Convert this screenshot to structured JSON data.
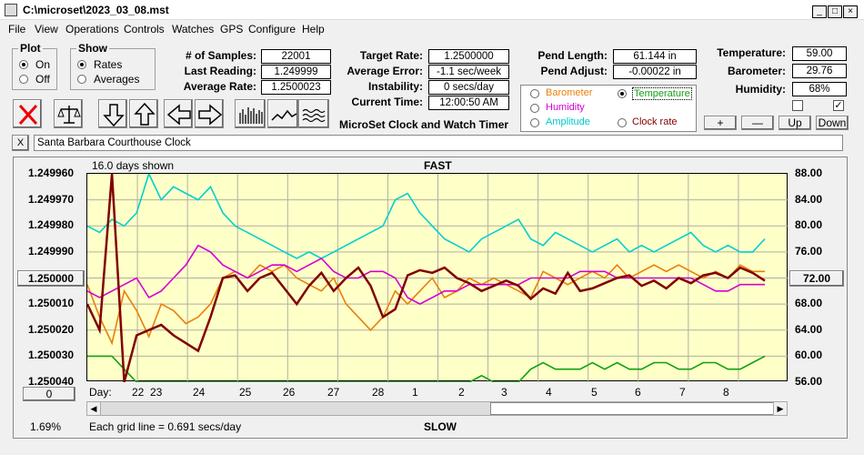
{
  "window": {
    "title": "C:\\microset\\2023_03_08.mst"
  },
  "menu": [
    "File",
    "View",
    "Operations",
    "Controls",
    "Watches",
    "GPS",
    "Configure",
    "Help"
  ],
  "plot_group": {
    "title": "Plot",
    "on": "On",
    "off": "Off"
  },
  "show_group": {
    "title": "Show",
    "rates": "Rates",
    "averages": "Averages"
  },
  "fields": {
    "samples_label": "# of Samples:",
    "samples": "22001",
    "last_label": "Last Reading:",
    "last": "1.249999",
    "avg_label": "Average Rate:",
    "avg": "1.2500023",
    "target_label": "Target Rate:",
    "target": "1.2500000",
    "avgerr_label": "Average Error:",
    "avgerr": "-1.1 sec/week",
    "instab_label": "Instability:",
    "instab": "0 secs/day",
    "time_label": "Current Time:",
    "time": "12:00:50 AM",
    "pendlen_label": "Pend Length:",
    "pendlen": "61.144 in",
    "pendadj_label": "Pend Adjust:",
    "pendadj": "-0.00022 in",
    "temp_label": "Temperature:",
    "temp": "59.00",
    "baro_label": "Barometer:",
    "baro": "29.76",
    "hum_label": "Humidity:",
    "hum": "68%"
  },
  "app_caption": "MicroSet Clock and Watch Timer",
  "sensor_radios": {
    "barometer": "Barometer",
    "temperature": "Temperature",
    "humidity": "Humidity",
    "amplitude": "Amplitude",
    "clockrate": "Clock rate"
  },
  "colors": {
    "barometer": "#e8800a",
    "temperature": "#13a013",
    "humidity": "#d400d4",
    "amplitude": "#00d0d0",
    "clockrate": "#800000"
  },
  "step_buttons": {
    "plus": "+",
    "minus": "—",
    "up": "Up",
    "down": "Down"
  },
  "clock_name": "Santa Barbara Courthouse Clock",
  "close_x": "X",
  "chart_data": {
    "type": "line",
    "title": "FAST",
    "bottom_title": "SLOW",
    "days_shown": "16.0 days shown",
    "grid_note": "Each grid line = 0.691 secs/day",
    "percent": "1.69%",
    "day_label": "Day:",
    "zero_button": "0",
    "left_center_button": "1.250000",
    "right_center_button": "72.00",
    "left_ticks": [
      "1.249960",
      "1.249970",
      "1.249980",
      "1.249990",
      "1.250000",
      "1.250010",
      "1.250020",
      "1.250030",
      "1.250040"
    ],
    "right_ticks": [
      "88.00",
      "84.00",
      "80.00",
      "76.00",
      "72.00",
      "68.00",
      "64.00",
      "60.00",
      "56.00"
    ],
    "days": [
      "22",
      "23",
      "24",
      "25",
      "26",
      "27",
      "28",
      "1",
      "2",
      "3",
      "4",
      "5",
      "6",
      "7",
      "8"
    ],
    "left_range": [
      1.24996,
      1.25004
    ],
    "right_range": [
      56,
      88
    ],
    "series": [
      {
        "key": "amplitude",
        "values": [
          80,
          79,
          81,
          80,
          82,
          88,
          84,
          86,
          85,
          84,
          86,
          82,
          80,
          79,
          78,
          77,
          76,
          75,
          76,
          75,
          76,
          77,
          78,
          79,
          80,
          84,
          85,
          82,
          80,
          78,
          77,
          76,
          78,
          79,
          80,
          81,
          78,
          77,
          79,
          78,
          77,
          76,
          77,
          78,
          76,
          77,
          76,
          77,
          78,
          79,
          77,
          76,
          77,
          76,
          76,
          78
        ]
      },
      {
        "key": "barometer",
        "values": [
          71,
          66,
          62,
          70,
          67,
          63,
          68,
          67,
          65,
          66,
          68,
          72,
          73,
          72,
          74,
          73,
          74,
          72,
          71,
          70,
          72,
          68,
          66,
          64,
          66,
          70,
          68,
          70,
          72,
          69,
          70,
          72,
          71,
          72,
          71,
          70,
          69,
          73,
          72,
          71,
          72,
          73,
          72,
          74,
          72,
          73,
          74,
          73,
          74,
          73,
          72,
          73,
          72,
          74,
          73,
          73
        ]
      },
      {
        "key": "humidity",
        "values": [
          70,
          69,
          70,
          71,
          72,
          69,
          70,
          72,
          74,
          77,
          76,
          74,
          73,
          72,
          73,
          74,
          74,
          73,
          74,
          75,
          73,
          72,
          72,
          73,
          73,
          72,
          69,
          68,
          69,
          70,
          70,
          71,
          71,
          71,
          71,
          71,
          72,
          72,
          72,
          72,
          73,
          73,
          73,
          72,
          72,
          72,
          72,
          72,
          72,
          72,
          71,
          70,
          70,
          71,
          71,
          71
        ]
      },
      {
        "key": "temperature",
        "values": [
          60,
          60,
          60,
          58,
          56,
          56,
          56,
          56,
          56,
          56,
          56,
          56,
          56,
          56,
          56,
          56,
          56,
          56,
          56,
          56,
          56,
          56,
          56,
          56,
          56,
          56,
          56,
          56,
          56,
          56,
          56,
          56,
          57,
          56,
          56,
          56,
          58,
          59,
          58,
          58,
          58,
          59,
          58,
          59,
          58,
          58,
          59,
          59,
          58,
          58,
          59,
          59,
          58,
          58,
          59,
          60
        ]
      },
      {
        "key": "clockrate",
        "values": [
          1.25001,
          1.25002,
          1.24996,
          1.25008,
          1.250022,
          1.25002,
          1.250018,
          1.250022,
          1.250025,
          1.250028,
          1.250015,
          1.25,
          1.249999,
          1.250005,
          1.25,
          1.249998,
          1.250004,
          1.25001,
          1.250003,
          1.249998,
          1.250005,
          1.25,
          1.249996,
          1.250003,
          1.250015,
          1.250012,
          1.249999,
          1.249997,
          1.249998,
          1.249996,
          1.25,
          1.250002,
          1.250005,
          1.250003,
          1.250001,
          1.250003,
          1.250008,
          1.250004,
          1.250006,
          1.249998,
          1.250005,
          1.250004,
          1.250002,
          1.25,
          1.249999,
          1.250003,
          1.250001,
          1.250004,
          1.25,
          1.250002,
          1.249999,
          1.249998,
          1.25,
          1.249996,
          1.249998,
          1.250001
        ]
      }
    ]
  }
}
